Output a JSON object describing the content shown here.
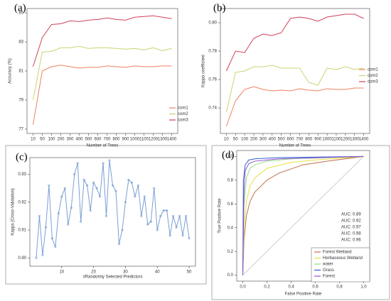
{
  "chart_data": [
    {
      "type": "line",
      "panel_label": "(a)",
      "x_label": "Number of Trees",
      "y_label": "Accuracy (%)",
      "categories": [
        "10",
        "50",
        "100",
        "200",
        "300",
        "400",
        "500",
        "600",
        "700",
        "800",
        "900",
        "1000",
        "1100",
        "1200",
        "1300",
        "1400"
      ],
      "series": [
        {
          "name": "com1",
          "color": "#f08060",
          "values": [
            77.3,
            81.0,
            81.3,
            81.4,
            81.3,
            81.2,
            81.25,
            81.25,
            81.35,
            81.3,
            81.25,
            81.35,
            81.3,
            81.3,
            81.35,
            81.35
          ]
        },
        {
          "name": "com2",
          "color": "#c8d470",
          "values": [
            79.0,
            82.3,
            82.35,
            82.6,
            82.6,
            82.7,
            82.55,
            82.6,
            82.6,
            82.55,
            82.5,
            82.55,
            82.45,
            82.6,
            82.4,
            82.55
          ]
        },
        {
          "name": "com3",
          "color": "#d0405a",
          "values": [
            81.3,
            83.3,
            84.2,
            84.25,
            84.45,
            84.4,
            84.5,
            84.55,
            84.65,
            84.55,
            84.5,
            84.7,
            84.75,
            84.8,
            84.7,
            84.6
          ]
        }
      ],
      "ylim": [
        76.7,
        85.3
      ],
      "yticks": [
        77,
        79,
        81,
        83,
        85
      ],
      "grid": false,
      "legend": "right"
    },
    {
      "type": "line",
      "panel_label": "(b)",
      "x_label": "Number of Trees",
      "y_label": "Kappa coefficient",
      "categories": [
        "10",
        "50",
        "100",
        "200",
        "300",
        "400",
        "500",
        "600",
        "700",
        "800",
        "900",
        "1000",
        "1100",
        "1200",
        "1300",
        "1400"
      ],
      "series": [
        {
          "name": "com1",
          "color": "#f08060",
          "values": [
            0.727,
            0.745,
            0.753,
            0.755,
            0.753,
            0.752,
            0.7525,
            0.752,
            0.7535,
            0.7525,
            0.752,
            0.7535,
            0.753,
            0.753,
            0.754,
            0.754
          ]
        },
        {
          "name": "com2",
          "color": "#c8d470",
          "values": [
            0.737,
            0.765,
            0.766,
            0.769,
            0.769,
            0.77,
            0.768,
            0.768,
            0.768,
            0.758,
            0.756,
            0.768,
            0.767,
            0.769,
            0.767,
            0.768
          ]
        },
        {
          "name": "com3",
          "color": "#d0405a",
          "values": [
            0.766,
            0.78,
            0.779,
            0.789,
            0.792,
            0.791,
            0.793,
            0.803,
            0.804,
            0.803,
            0.801,
            0.804,
            0.805,
            0.806,
            0.806,
            0.803
          ]
        }
      ],
      "ylim": [
        0.722,
        0.81
      ],
      "yticks": [
        0.74,
        0.76,
        0.78,
        {
          "value": 0.8,
          "label": "0.80"
        }
      ],
      "grid": false,
      "legend": "right"
    },
    {
      "type": "line",
      "panel_label": "(c)",
      "x_label": "#Randomly Selected Predictors",
      "y_label": "Kappa (Cross-Validation)",
      "x": [
        2,
        3,
        4,
        5,
        6,
        7,
        8,
        9,
        10,
        11,
        12,
        13,
        14,
        15,
        16,
        17,
        18,
        19,
        20,
        21,
        22,
        23,
        24,
        25,
        26,
        27,
        28,
        29,
        30,
        31,
        32,
        33,
        34,
        35,
        36,
        37,
        38,
        39,
        40,
        41,
        42,
        43,
        44,
        45,
        46,
        47,
        48,
        49,
        50
      ],
      "series": [
        {
          "color": "#7b9fd4",
          "values": [
            0.9,
            0.915,
            0.901,
            0.911,
            0.926,
            0.907,
            0.904,
            0.916,
            0.922,
            0.925,
            0.912,
            0.918,
            0.93,
            0.934,
            0.913,
            0.928,
            0.926,
            0.917,
            0.927,
            0.925,
            0.922,
            0.934,
            0.915,
            0.935,
            0.926,
            0.924,
            0.905,
            0.91,
            0.92,
            0.928,
            0.927,
            0.922,
            0.926,
            0.915,
            0.922,
            0.912,
            0.913,
            0.925,
            0.91,
            0.915,
            0.917,
            0.917,
            0.908,
            0.915,
            0.911,
            0.915,
            0.908,
            0.915,
            0.907
          ]
        }
      ],
      "xlim": [
        0,
        52
      ],
      "xticks": [
        10,
        20,
        30,
        40,
        50
      ],
      "ylim": [
        0.897,
        0.936
      ],
      "yticks": [
        {
          "value": 0.9,
          "label": "0.90"
        },
        0.91,
        0.92,
        0.93
      ],
      "grid": false,
      "markers": true
    },
    {
      "type": "line",
      "panel_label": "(d)",
      "x_label": "False Positive Rate",
      "y_label": "True Positive Rate",
      "series": [
        {
          "name": "Forest Wetland",
          "color": "#c0704a",
          "auc_label": "AUC: 0.89",
          "x": [
            0,
            0.01,
            0.03,
            0.06,
            0.1,
            0.2,
            0.3,
            0.5,
            0.7,
            1
          ],
          "values": [
            0,
            0.3,
            0.5,
            0.62,
            0.7,
            0.8,
            0.86,
            0.93,
            0.96,
            1
          ]
        },
        {
          "name": "Herbaceous Wetland",
          "color": "#e8e040",
          "auc_label": "AUC: 0.92",
          "x": [
            0,
            0.01,
            0.03,
            0.06,
            0.1,
            0.2,
            0.4,
            0.6,
            1
          ],
          "values": [
            0,
            0.4,
            0.62,
            0.75,
            0.82,
            0.9,
            0.95,
            0.97,
            1
          ]
        },
        {
          "name": "water",
          "color": "#90e080",
          "auc_label": "AUC: 0.97",
          "x": [
            0,
            0.01,
            0.03,
            0.06,
            0.1,
            0.2,
            0.4,
            1
          ],
          "values": [
            0,
            0.6,
            0.82,
            0.9,
            0.93,
            0.96,
            0.98,
            1
          ]
        },
        {
          "name": "Grass",
          "color": "#3060d0",
          "auc_label": "AUC: 0.98",
          "x": [
            0,
            0.005,
            0.02,
            0.05,
            0.1,
            0.3,
            1
          ],
          "values": [
            0,
            0.8,
            0.93,
            0.97,
            0.98,
            0.99,
            1
          ]
        },
        {
          "name": "Forest",
          "color": "#9050d0",
          "auc_label": "AUC: 0.96",
          "x": [
            0,
            0.01,
            0.02,
            0.05,
            0.1,
            0.3,
            1
          ],
          "values": [
            0,
            0.7,
            0.88,
            0.94,
            0.96,
            0.98,
            1
          ]
        }
      ],
      "xlim": [
        -0.05,
        1.05
      ],
      "xticks": [
        {
          "value": 0,
          "label": "0.0"
        },
        0.2,
        0.4,
        0.6,
        0.8,
        {
          "value": 1,
          "label": "1.0"
        }
      ],
      "ylim": [
        -0.05,
        1.05
      ],
      "yticks": [
        {
          "value": 0,
          "label": "0.0"
        },
        0.2,
        0.4,
        0.6,
        0.8,
        {
          "value": 1,
          "label": "1.0"
        }
      ],
      "grid": false,
      "legend": "lower right"
    }
  ]
}
